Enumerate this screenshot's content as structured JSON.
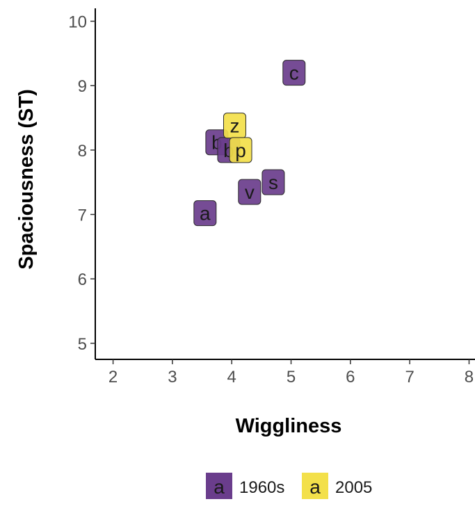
{
  "chart_data": {
    "type": "scatter",
    "title": "",
    "xlabel": "Wiggliness",
    "ylabel": "Spaciousness (ST)",
    "xlim": [
      1.7,
      8.1
    ],
    "ylim": [
      4.75,
      10.2
    ],
    "xticks": [
      2,
      3,
      4,
      5,
      6,
      7,
      8
    ],
    "yticks": [
      5,
      6,
      7,
      8,
      9,
      10
    ],
    "grid": false,
    "legend_position": "bottom",
    "series": [
      {
        "name": "1960s",
        "color": "#6a3d8c",
        "points": [
          {
            "label": "a",
            "x": 3.55,
            "y": 7.02
          },
          {
            "label": "b",
            "x": 3.75,
            "y": 8.12
          },
          {
            "label": "b",
            "x": 3.95,
            "y": 8.0
          },
          {
            "label": "v",
            "x": 4.3,
            "y": 7.35
          },
          {
            "label": "s",
            "x": 4.7,
            "y": 7.5
          },
          {
            "label": "c",
            "x": 5.05,
            "y": 9.2
          }
        ]
      },
      {
        "name": "2005",
        "color": "#f3e04a",
        "points": [
          {
            "label": "z",
            "x": 4.05,
            "y": 8.38
          },
          {
            "label": "p",
            "x": 4.15,
            "y": 8.0
          }
        ]
      }
    ],
    "legend": [
      {
        "key_label": "a",
        "name": "1960s",
        "color": "#6a3d8c"
      },
      {
        "key_label": "a",
        "name": "2005",
        "color": "#f3e04a"
      }
    ]
  }
}
